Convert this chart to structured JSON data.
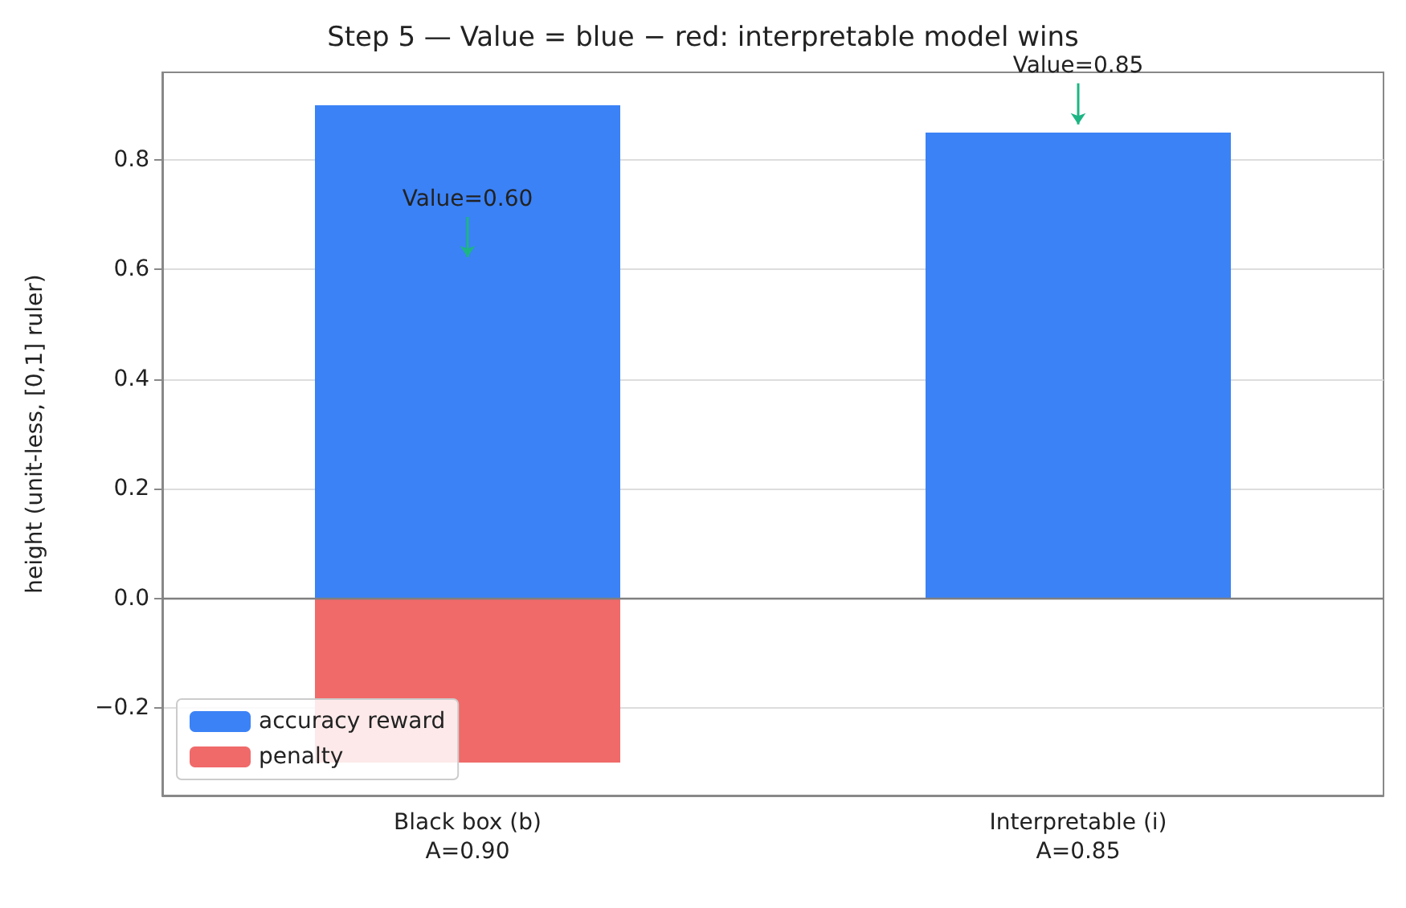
{
  "chart_data": {
    "type": "bar",
    "title": "Step 5 — Value = blue − red: interpretable model wins",
    "ylabel": "height (unit-less, [0,1] ruler)",
    "categories": [
      "Black box (b)\nA=0.90",
      "Interpretable (i)\nA=0.85"
    ],
    "series": [
      {
        "name": "accuracy reward",
        "color": "#3b82f6",
        "values": [
          0.9,
          0.85
        ]
      },
      {
        "name": "penalty",
        "color": "#f06a6a",
        "values": [
          -0.3,
          null
        ]
      }
    ],
    "stacked": true,
    "ylim": [
      -0.36,
      0.96
    ],
    "yticks": [
      {
        "value": -0.2,
        "label": "−0.2"
      },
      {
        "value": 0,
        "label": "0.0"
      },
      {
        "value": 0.2,
        "label": "0.2"
      },
      {
        "value": 0.4,
        "label": "0.4"
      },
      {
        "value": 0.6,
        "label": "0.6"
      },
      {
        "value": 0.8,
        "label": "0.8"
      }
    ],
    "grid": "y",
    "legend": "bottom left",
    "ref_lines": [
      {
        "axis": "y",
        "value": 0,
        "color": "#808080"
      }
    ],
    "annotations": [
      "Value=0.60",
      {
        "text": "Value=0.85",
        "x": "Interpretable (i)\nA=0.85",
        "y": 0.85
      }
    ]
  }
}
